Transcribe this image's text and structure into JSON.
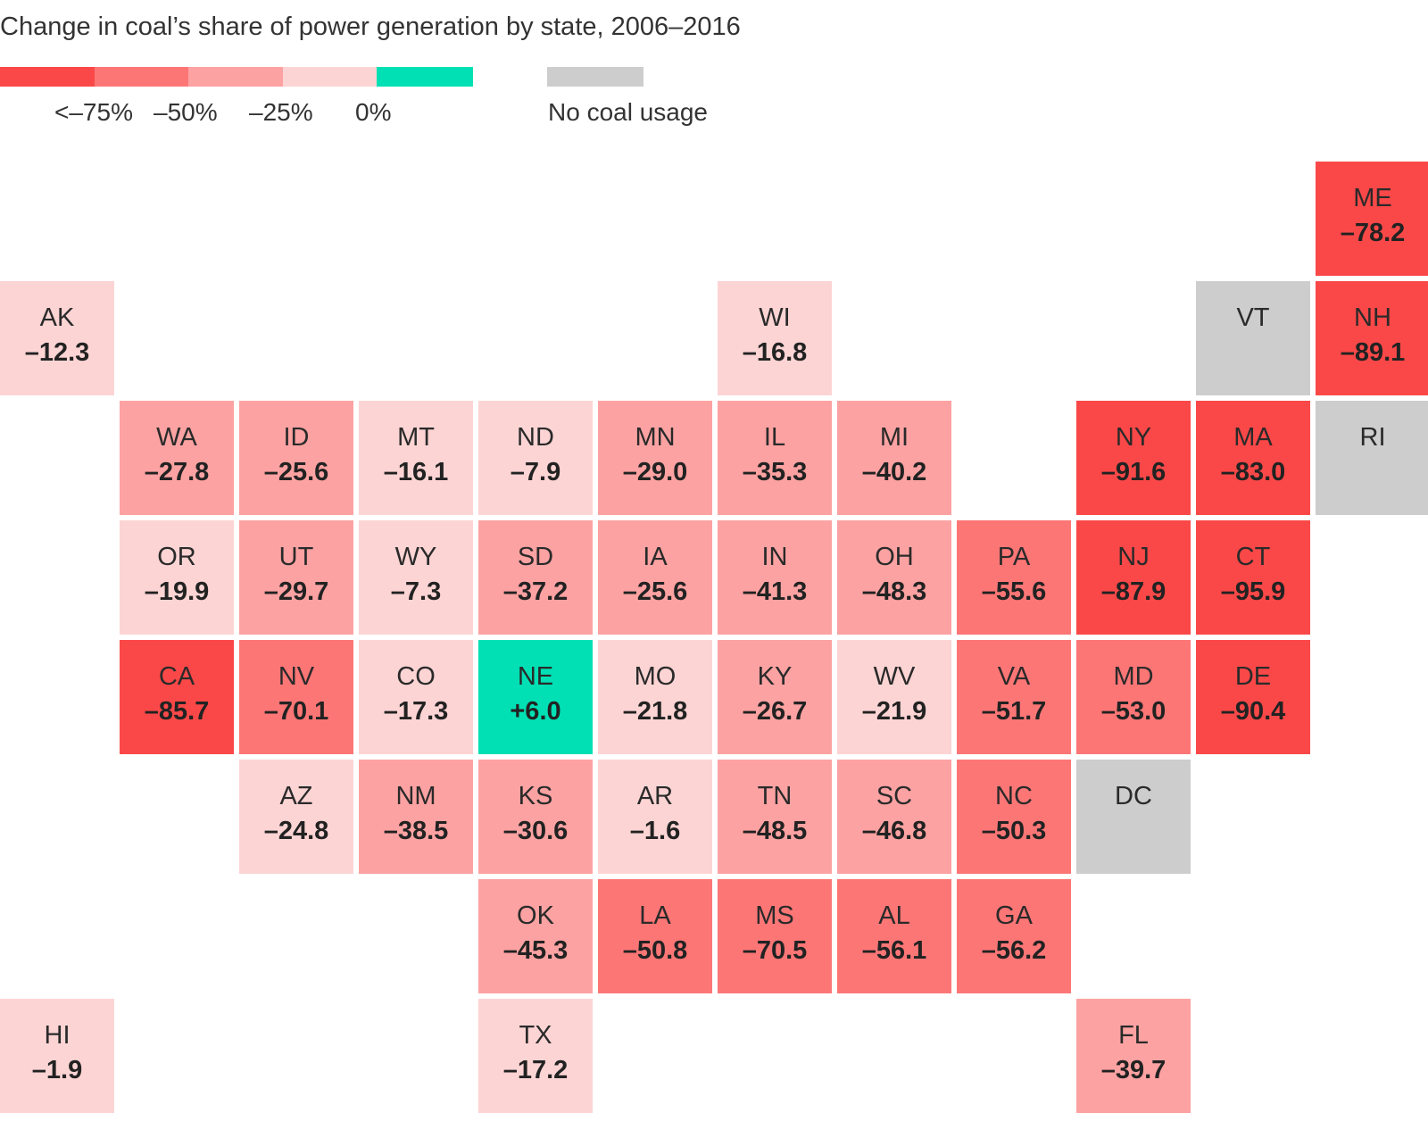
{
  "title": "Change in coal’s share of power generation by state, 2006–2016",
  "colors": {
    "bin_lt_75": "#fa4848",
    "bin_50_75": "#fd7676",
    "bin_25_50": "#fda2a2",
    "bin_0_25": "#fdd4d4",
    "positive": "#00e0b4",
    "no_coal": "#cdcdcd"
  },
  "legend": {
    "labels": [
      "<–75%",
      "–50%",
      "–25%",
      "0%"
    ],
    "no_coal_label": "No coal usage"
  },
  "states": [
    {
      "abbr": "ME",
      "value": "–78.2",
      "col": 11,
      "row": 0,
      "bin": "bin_lt_75"
    },
    {
      "abbr": "AK",
      "value": "–12.3",
      "col": 0,
      "row": 1,
      "bin": "bin_0_25"
    },
    {
      "abbr": "WI",
      "value": "–16.8",
      "col": 6,
      "row": 1,
      "bin": "bin_0_25"
    },
    {
      "abbr": "VT",
      "value": "",
      "col": 10,
      "row": 1,
      "bin": "no_coal"
    },
    {
      "abbr": "NH",
      "value": "–89.1",
      "col": 11,
      "row": 1,
      "bin": "bin_lt_75"
    },
    {
      "abbr": "WA",
      "value": "–27.8",
      "col": 1,
      "row": 2,
      "bin": "bin_25_50"
    },
    {
      "abbr": "ID",
      "value": "–25.6",
      "col": 2,
      "row": 2,
      "bin": "bin_25_50"
    },
    {
      "abbr": "MT",
      "value": "–16.1",
      "col": 3,
      "row": 2,
      "bin": "bin_0_25"
    },
    {
      "abbr": "ND",
      "value": "–7.9",
      "col": 4,
      "row": 2,
      "bin": "bin_0_25"
    },
    {
      "abbr": "MN",
      "value": "–29.0",
      "col": 5,
      "row": 2,
      "bin": "bin_25_50"
    },
    {
      "abbr": "IL",
      "value": "–35.3",
      "col": 6,
      "row": 2,
      "bin": "bin_25_50"
    },
    {
      "abbr": "MI",
      "value": "–40.2",
      "col": 7,
      "row": 2,
      "bin": "bin_25_50"
    },
    {
      "abbr": "NY",
      "value": "–91.6",
      "col": 9,
      "row": 2,
      "bin": "bin_lt_75"
    },
    {
      "abbr": "MA",
      "value": "–83.0",
      "col": 10,
      "row": 2,
      "bin": "bin_lt_75"
    },
    {
      "abbr": "RI",
      "value": "",
      "col": 11,
      "row": 2,
      "bin": "no_coal"
    },
    {
      "abbr": "OR",
      "value": "–19.9",
      "col": 1,
      "row": 3,
      "bin": "bin_0_25"
    },
    {
      "abbr": "UT",
      "value": "–29.7",
      "col": 2,
      "row": 3,
      "bin": "bin_25_50"
    },
    {
      "abbr": "WY",
      "value": "–7.3",
      "col": 3,
      "row": 3,
      "bin": "bin_0_25"
    },
    {
      "abbr": "SD",
      "value": "–37.2",
      "col": 4,
      "row": 3,
      "bin": "bin_25_50"
    },
    {
      "abbr": "IA",
      "value": "–25.6",
      "col": 5,
      "row": 3,
      "bin": "bin_25_50"
    },
    {
      "abbr": "IN",
      "value": "–41.3",
      "col": 6,
      "row": 3,
      "bin": "bin_25_50"
    },
    {
      "abbr": "OH",
      "value": "–48.3",
      "col": 7,
      "row": 3,
      "bin": "bin_25_50"
    },
    {
      "abbr": "PA",
      "value": "–55.6",
      "col": 8,
      "row": 3,
      "bin": "bin_50_75"
    },
    {
      "abbr": "NJ",
      "value": "–87.9",
      "col": 9,
      "row": 3,
      "bin": "bin_lt_75"
    },
    {
      "abbr": "CT",
      "value": "–95.9",
      "col": 10,
      "row": 3,
      "bin": "bin_lt_75"
    },
    {
      "abbr": "CA",
      "value": "–85.7",
      "col": 1,
      "row": 4,
      "bin": "bin_lt_75"
    },
    {
      "abbr": "NV",
      "value": "–70.1",
      "col": 2,
      "row": 4,
      "bin": "bin_50_75"
    },
    {
      "abbr": "CO",
      "value": "–17.3",
      "col": 3,
      "row": 4,
      "bin": "bin_0_25"
    },
    {
      "abbr": "NE",
      "value": "+6.0",
      "col": 4,
      "row": 4,
      "bin": "positive"
    },
    {
      "abbr": "MO",
      "value": "–21.8",
      "col": 5,
      "row": 4,
      "bin": "bin_0_25"
    },
    {
      "abbr": "KY",
      "value": "–26.7",
      "col": 6,
      "row": 4,
      "bin": "bin_25_50"
    },
    {
      "abbr": "WV",
      "value": "–21.9",
      "col": 7,
      "row": 4,
      "bin": "bin_0_25"
    },
    {
      "abbr": "VA",
      "value": "–51.7",
      "col": 8,
      "row": 4,
      "bin": "bin_50_75"
    },
    {
      "abbr": "MD",
      "value": "–53.0",
      "col": 9,
      "row": 4,
      "bin": "bin_50_75"
    },
    {
      "abbr": "DE",
      "value": "–90.4",
      "col": 10,
      "row": 4,
      "bin": "bin_lt_75"
    },
    {
      "abbr": "AZ",
      "value": "–24.8",
      "col": 2,
      "row": 5,
      "bin": "bin_0_25"
    },
    {
      "abbr": "NM",
      "value": "–38.5",
      "col": 3,
      "row": 5,
      "bin": "bin_25_50"
    },
    {
      "abbr": "KS",
      "value": "–30.6",
      "col": 4,
      "row": 5,
      "bin": "bin_25_50"
    },
    {
      "abbr": "AR",
      "value": "–1.6",
      "col": 5,
      "row": 5,
      "bin": "bin_0_25"
    },
    {
      "abbr": "TN",
      "value": "–48.5",
      "col": 6,
      "row": 5,
      "bin": "bin_25_50"
    },
    {
      "abbr": "SC",
      "value": "–46.8",
      "col": 7,
      "row": 5,
      "bin": "bin_25_50"
    },
    {
      "abbr": "NC",
      "value": "–50.3",
      "col": 8,
      "row": 5,
      "bin": "bin_50_75"
    },
    {
      "abbr": "DC",
      "value": "",
      "col": 9,
      "row": 5,
      "bin": "no_coal"
    },
    {
      "abbr": "OK",
      "value": "–45.3",
      "col": 4,
      "row": 6,
      "bin": "bin_25_50"
    },
    {
      "abbr": "LA",
      "value": "–50.8",
      "col": 5,
      "row": 6,
      "bin": "bin_50_75"
    },
    {
      "abbr": "MS",
      "value": "–70.5",
      "col": 6,
      "row": 6,
      "bin": "bin_50_75"
    },
    {
      "abbr": "AL",
      "value": "–56.1",
      "col": 7,
      "row": 6,
      "bin": "bin_50_75"
    },
    {
      "abbr": "GA",
      "value": "–56.2",
      "col": 8,
      "row": 6,
      "bin": "bin_50_75"
    },
    {
      "abbr": "HI",
      "value": "–1.9",
      "col": 0,
      "row": 7,
      "bin": "bin_0_25"
    },
    {
      "abbr": "TX",
      "value": "–17.2",
      "col": 4,
      "row": 7,
      "bin": "bin_0_25"
    },
    {
      "abbr": "FL",
      "value": "–39.7",
      "col": 9,
      "row": 7,
      "bin": "bin_25_50"
    }
  ]
}
